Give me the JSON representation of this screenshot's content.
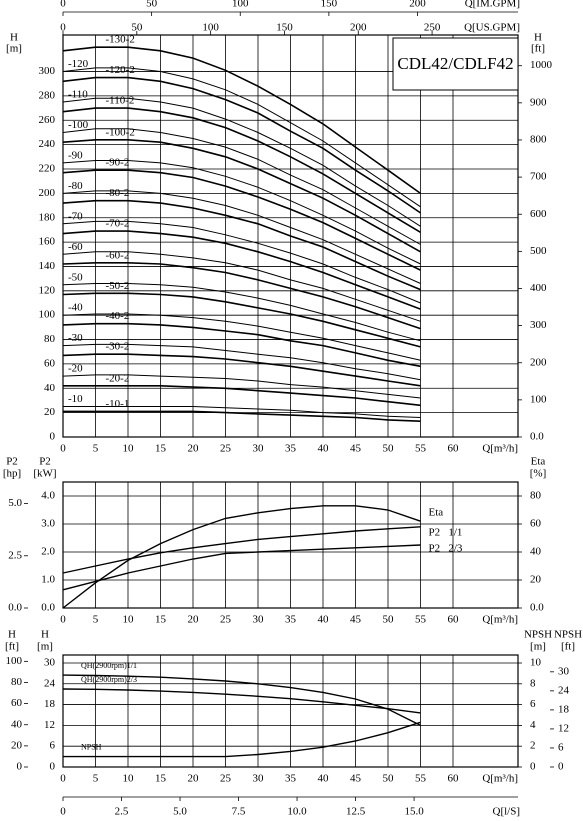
{
  "chart_data": [
    {
      "type": "line",
      "title": "CDL42/CDLF42",
      "color": "#000000",
      "grid": true,
      "x_label": "Q[m³/h]",
      "x": [
        0,
        5,
        10,
        15,
        20,
        25,
        30,
        35,
        40,
        45,
        50,
        55
      ],
      "xlim": [
        0,
        70
      ],
      "xticks": [
        0,
        5,
        10,
        15,
        20,
        25,
        30,
        35,
        40,
        45,
        50,
        55,
        60
      ],
      "y_label": "H",
      "y_unit": "[m]",
      "ylim": [
        0,
        330
      ],
      "yticks": [
        0,
        20,
        40,
        60,
        80,
        100,
        120,
        140,
        160,
        180,
        200,
        220,
        240,
        260,
        280,
        300
      ],
      "y2_label": "H",
      "y2_unit": "[ft]",
      "y2lim": [
        0,
        1082.7
      ],
      "y2ticks": [
        {
          "value": 0,
          "label": "0.0"
        },
        100,
        200,
        300,
        400,
        500,
        600,
        700,
        800,
        900,
        1000
      ],
      "extra_axes": [
        {
          "side": "top",
          "label": "Q[US.GPM]",
          "lim": [
            0,
            308.2
          ],
          "ticks": [
            0,
            50,
            100,
            150,
            200,
            250
          ]
        },
        {
          "side": "top-outer",
          "label": "Q[IM.GPM]",
          "lim": [
            0,
            256.7
          ],
          "ticks": [
            0,
            50,
            100,
            150,
            200
          ]
        }
      ],
      "series": [
        {
          "name": "-10",
          "values": [
            25,
            25,
            25,
            25,
            25,
            24,
            23,
            22,
            20,
            19,
            17,
            16
          ]
        },
        {
          "name": "-10-1",
          "values": [
            21,
            21,
            21,
            21,
            21,
            20,
            19,
            18,
            17,
            16,
            14,
            13
          ]
        },
        {
          "name": "-20",
          "values": [
            50,
            51,
            51,
            50,
            49,
            48,
            46,
            43,
            41,
            38,
            35,
            32
          ]
        },
        {
          "name": "-20-2",
          "values": [
            42,
            42,
            42,
            42,
            41,
            40,
            38,
            36,
            34,
            32,
            29,
            26
          ]
        },
        {
          "name": "-30",
          "values": [
            75,
            76,
            76,
            75,
            74,
            71,
            68,
            65,
            61,
            56,
            52,
            47
          ]
        },
        {
          "name": "-30-2",
          "values": [
            67,
            68,
            68,
            67,
            66,
            64,
            61,
            58,
            54,
            50,
            46,
            42
          ]
        },
        {
          "name": "-40",
          "values": [
            100,
            101,
            101,
            100,
            98,
            95,
            91,
            86,
            81,
            75,
            69,
            63
          ]
        },
        {
          "name": "-40-2",
          "values": [
            92,
            93,
            93,
            92,
            90,
            87,
            84,
            79,
            75,
            69,
            63,
            58
          ]
        },
        {
          "name": "-50",
          "values": [
            125,
            126,
            126,
            125,
            123,
            119,
            114,
            108,
            101,
            94,
            86,
            79
          ]
        },
        {
          "name": "-50-2",
          "values": [
            117,
            118,
            118,
            117,
            115,
            111,
            106,
            101,
            95,
            88,
            81,
            74
          ]
        },
        {
          "name": "-60",
          "values": [
            150,
            152,
            152,
            150,
            147,
            143,
            137,
            129,
            122,
            113,
            104,
            95
          ]
        },
        {
          "name": "-60-2",
          "values": [
            142,
            143,
            143,
            142,
            139,
            135,
            129,
            122,
            115,
            107,
            98,
            89
          ]
        },
        {
          "name": "-70",
          "values": [
            175,
            177,
            177,
            175,
            172,
            166,
            159,
            151,
            142,
            131,
            121,
            110
          ]
        },
        {
          "name": "-70-2",
          "values": [
            167,
            169,
            169,
            167,
            164,
            159,
            152,
            144,
            135,
            125,
            115,
            105
          ]
        },
        {
          "name": "-80",
          "values": [
            200,
            202,
            202,
            200,
            196,
            190,
            182,
            172,
            162,
            150,
            138,
            126
          ]
        },
        {
          "name": "-80-2",
          "values": [
            192,
            194,
            194,
            192,
            188,
            182,
            175,
            165,
            156,
            144,
            132,
            121
          ]
        },
        {
          "name": "-90",
          "values": [
            225,
            227,
            227,
            225,
            221,
            214,
            205,
            194,
            182,
            169,
            155,
            142
          ]
        },
        {
          "name": "-90-2",
          "values": [
            217,
            219,
            219,
            217,
            213,
            206,
            197,
            187,
            176,
            163,
            150,
            137
          ]
        },
        {
          "name": "-100",
          "values": [
            250,
            253,
            253,
            250,
            245,
            238,
            228,
            215,
            203,
            188,
            173,
            158
          ]
        },
        {
          "name": "-100-2",
          "values": [
            242,
            244,
            244,
            242,
            237,
            230,
            220,
            208,
            196,
            182,
            167,
            152
          ]
        },
        {
          "name": "-110",
          "values": [
            275,
            278,
            278,
            275,
            270,
            261,
            250,
            237,
            223,
            206,
            190,
            173
          ]
        },
        {
          "name": "-110-2",
          "values": [
            267,
            270,
            270,
            267,
            262,
            254,
            243,
            230,
            216,
            200,
            184,
            168
          ]
        },
        {
          "name": "-120",
          "values": [
            300,
            303,
            303,
            300,
            294,
            285,
            273,
            258,
            243,
            225,
            207,
            189
          ]
        },
        {
          "name": "-120-2",
          "values": [
            292,
            295,
            295,
            292,
            286,
            277,
            266,
            251,
            237,
            219,
            202,
            184
          ]
        },
        {
          "name": "-130-2",
          "values": [
            317,
            320,
            320,
            317,
            311,
            301,
            288,
            273,
            257,
            238,
            219,
            200
          ]
        }
      ]
    },
    {
      "type": "line",
      "color": "#000000",
      "grid": true,
      "x_label": "Q[m³/h]",
      "x": [
        0,
        5,
        10,
        15,
        20,
        25,
        30,
        35,
        40,
        45,
        50,
        55
      ],
      "xlim": [
        0,
        70
      ],
      "xticks": [
        0,
        5,
        10,
        15,
        20,
        25,
        30,
        35,
        40,
        45,
        50,
        55,
        60
      ],
      "y_label": "P2",
      "y_unit": "[kW]",
      "ylim": [
        0,
        4.5
      ],
      "yticks": [
        {
          "value": 0,
          "label": "0.0"
        },
        {
          "value": 1,
          "label": "1.0"
        },
        {
          "value": 2,
          "label": "2.0"
        },
        {
          "value": 3,
          "label": "3.0"
        },
        {
          "value": 4,
          "label": "4.0"
        }
      ],
      "y2_label": "Eta",
      "y2_unit": "[%]",
      "y2lim": [
        0,
        90
      ],
      "y2ticks": [
        {
          "value": 0,
          "label": "0.0"
        },
        20,
        40,
        60,
        80
      ],
      "extra_axes": [
        {
          "side": "left-outer",
          "label": "P2",
          "unit": "[hp]",
          "lim": [
            0,
            6.03
          ],
          "ticks": [
            {
              "value": 0,
              "label": "0.0"
            },
            2.5,
            {
              "value": 5,
              "label": "5.0"
            }
          ]
        }
      ],
      "series": [
        {
          "name": "Eta",
          "axis": "y2",
          "values": [
            0,
            18,
            34,
            46,
            56,
            64,
            68,
            71,
            73,
            73,
            70,
            62
          ]
        },
        {
          "name": "P2   1/1",
          "values": [
            1.25,
            1.5,
            1.75,
            1.97,
            2.15,
            2.3,
            2.45,
            2.55,
            2.65,
            2.75,
            2.83,
            2.9
          ]
        },
        {
          "name": "P2   2/3",
          "values": [
            0.65,
            0.95,
            1.25,
            1.5,
            1.75,
            1.95,
            2.0,
            2.05,
            2.1,
            2.15,
            2.2,
            2.25
          ]
        }
      ]
    },
    {
      "type": "line",
      "color": "#000000",
      "grid": true,
      "x_label": "Q[m³/h]",
      "x": [
        0,
        5,
        10,
        15,
        20,
        25,
        30,
        35,
        40,
        45,
        50,
        55
      ],
      "xlim": [
        0,
        70
      ],
      "xticks": [
        0,
        5,
        10,
        15,
        20,
        25,
        30,
        35,
        40,
        45,
        50,
        55,
        60
      ],
      "y_label": "H",
      "y_unit": "[m]",
      "ylim": [
        0,
        32.3
      ],
      "yticks": [
        0,
        6,
        12,
        18,
        24,
        30
      ],
      "y2_label": "NPSH",
      "y2_unit": "[m]",
      "y2lim": [
        0,
        10.77
      ],
      "y2ticks": [
        0,
        2,
        4,
        6,
        8,
        10
      ],
      "extra_axes": [
        {
          "side": "left-outer",
          "label": "H",
          "unit": "[ft]",
          "lim": [
            0,
            106
          ],
          "ticks": [
            0,
            20,
            40,
            60,
            80,
            100
          ]
        },
        {
          "side": "right-outer",
          "label": "NPSH",
          "unit": "[ft]",
          "lim": [
            0,
            35.3
          ],
          "ticks": [
            0,
            6,
            12,
            18,
            24,
            30
          ]
        },
        {
          "side": "bottom-outer",
          "label": "Q[l/S]",
          "lim": [
            0,
            19.44
          ],
          "ticks": [
            0,
            2.5,
            {
              "value": 5,
              "label": "5.0"
            },
            7.5,
            {
              "value": 10,
              "label": "10.0"
            },
            12.5,
            {
              "value": 15,
              "label": "15.0"
            }
          ]
        }
      ],
      "series": [
        {
          "name": "QH(2900rpm)1/1",
          "values": [
            26.5,
            26.4,
            26.2,
            25.9,
            25.4,
            24.8,
            24.0,
            22.9,
            21.5,
            19.6,
            16.7,
            12.0
          ]
        },
        {
          "name": "QH(2900rpm)2/3",
          "values": [
            22.5,
            22.4,
            22.2,
            21.9,
            21.5,
            21.0,
            20.4,
            19.7,
            18.8,
            17.8,
            16.8,
            15.6
          ]
        },
        {
          "name": "NPSH",
          "axis": "y2",
          "values": [
            1.0,
            1.0,
            1.0,
            1.0,
            1.0,
            1.0,
            1.2,
            1.5,
            1.9,
            2.5,
            3.3,
            4.3
          ]
        }
      ]
    }
  ]
}
